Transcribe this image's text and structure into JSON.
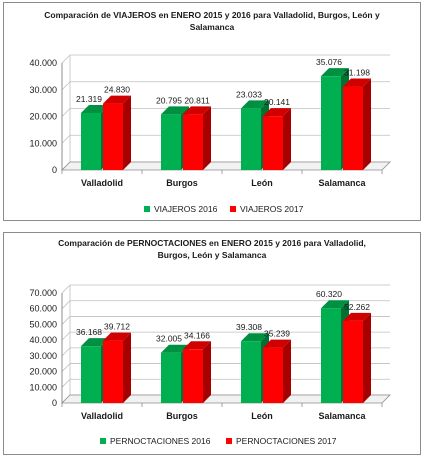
{
  "chart_data": [
    {
      "type": "bar",
      "title": "Comparación de VIAJEROS en ENERO 2015 y 2016 para Valladolid, Burgos, León y Salamanca",
      "categories": [
        "Valladolid",
        "Burgos",
        "León",
        "Salamanca"
      ],
      "series": [
        {
          "name": "VIAJEROS 2016",
          "values": [
            21319,
            20795,
            23033,
            35076
          ],
          "labels": [
            "21.319",
            "20.795",
            "23.033",
            "35.076"
          ]
        },
        {
          "name": "VIAJEROS 2017",
          "values": [
            24830,
            20811,
            20141,
            31198
          ],
          "labels": [
            "24.830",
            "20.811",
            "20.141",
            "31.198"
          ]
        }
      ],
      "ylim": [
        0,
        40000
      ],
      "yticks": [
        "0",
        "10.000",
        "20.000",
        "30.000",
        "40.000"
      ],
      "grid": true,
      "legend": "bottom",
      "colors": [
        "#00b050",
        "#ff0000"
      ]
    },
    {
      "type": "bar",
      "title": "Comparación de PERNOCTACIONES en ENERO 2015 y 2016 para Valladolid, Burgos, León y Salamanca",
      "categories": [
        "Valladolid",
        "Burgos",
        "León",
        "Salamanca"
      ],
      "series": [
        {
          "name": "PERNOCTACIONES 2016",
          "values": [
            36168,
            32005,
            39308,
            60320
          ],
          "labels": [
            "36.168",
            "32.005",
            "39.308",
            "60.320"
          ]
        },
        {
          "name": "PERNOCTACIONES 2017",
          "values": [
            39712,
            34166,
            35239,
            52262
          ],
          "labels": [
            "39.712",
            "34.166",
            "35.239",
            "52.262"
          ]
        }
      ],
      "ylim": [
        0,
        70000
      ],
      "yticks": [
        "0",
        "10.000",
        "20.000",
        "30.000",
        "40.000",
        "50.000",
        "60.000",
        "70.000"
      ],
      "grid": true,
      "legend": "bottom",
      "colors": [
        "#00b050",
        "#ff0000"
      ]
    }
  ]
}
